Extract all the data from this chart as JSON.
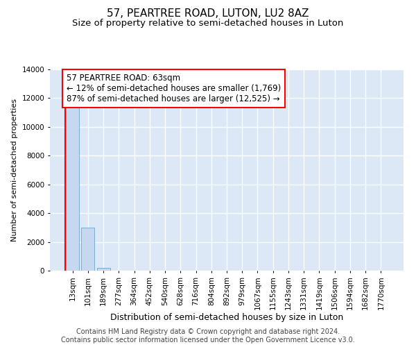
{
  "title": "57, PEARTREE ROAD, LUTON, LU2 8AZ",
  "subtitle": "Size of property relative to semi-detached houses in Luton",
  "xlabel": "Distribution of semi-detached houses by size in Luton",
  "ylabel": "Number of semi-detached properties",
  "categories": [
    "13sqm",
    "101sqm",
    "189sqm",
    "277sqm",
    "364sqm",
    "452sqm",
    "540sqm",
    "628sqm",
    "716sqm",
    "804sqm",
    "892sqm",
    "979sqm",
    "1067sqm",
    "1155sqm",
    "1243sqm",
    "1331sqm",
    "1419sqm",
    "1506sqm",
    "1594sqm",
    "1682sqm",
    "1770sqm"
  ],
  "values": [
    11400,
    3000,
    200,
    0,
    0,
    0,
    0,
    0,
    0,
    0,
    0,
    0,
    0,
    0,
    0,
    0,
    0,
    0,
    0,
    0,
    0
  ],
  "bar_color": "#c5d8ef",
  "bar_edge_color": "#7aadd4",
  "property_line_x": -0.5,
  "annotation_text": "57 PEARTREE ROAD: 63sqm\n← 12% of semi-detached houses are smaller (1,769)\n87% of semi-detached houses are larger (12,525) →",
  "annotation_box_color": "white",
  "annotation_box_edge_color": "red",
  "property_line_color": "red",
  "ylim": [
    0,
    14000
  ],
  "yticks": [
    0,
    2000,
    4000,
    6000,
    8000,
    10000,
    12000,
    14000
  ],
  "background_color": "#dce8f5",
  "grid_color": "white",
  "footer_line1": "Contains HM Land Registry data © Crown copyright and database right 2024.",
  "footer_line2": "Contains public sector information licensed under the Open Government Licence v3.0.",
  "title_fontsize": 11,
  "subtitle_fontsize": 9.5,
  "xlabel_fontsize": 9,
  "ylabel_fontsize": 8,
  "tick_fontsize": 7.5,
  "annotation_fontsize": 8.5,
  "footer_fontsize": 7
}
